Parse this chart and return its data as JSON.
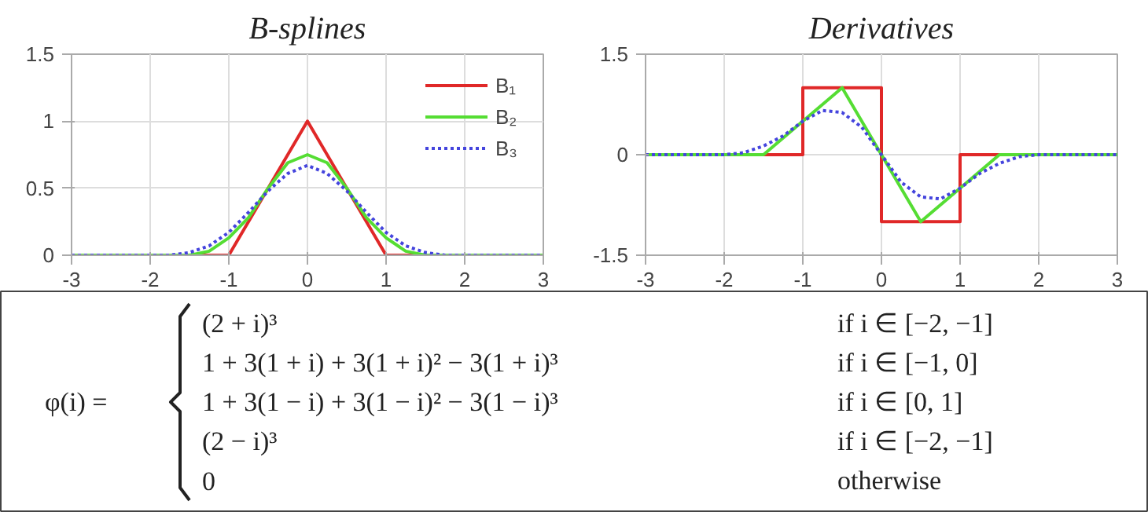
{
  "chart_data": [
    {
      "type": "line",
      "title": "B-splines",
      "xlim": [
        -3,
        3
      ],
      "ylim": [
        0,
        1.5
      ],
      "xticks": [
        -3,
        -2,
        -1,
        0,
        1,
        2,
        3
      ],
      "yticks": [
        0,
        {
          "value": 0.5,
          "label": "0.5"
        },
        1,
        {
          "value": 1.5,
          "label": "1.5"
        }
      ],
      "grid": true,
      "legend": "top right",
      "series": [
        {
          "name": "B₁",
          "color": "#e02828",
          "line_style": "solid",
          "x": [
            -3,
            -1,
            0,
            1,
            3
          ],
          "values": [
            0,
            0,
            1,
            0,
            0
          ]
        },
        {
          "name": "B₂",
          "color": "#55dd33",
          "line_style": "solid",
          "x": [
            -3,
            -1.5,
            -1.25,
            -1,
            -0.75,
            -0.5,
            -0.25,
            0,
            0.25,
            0.5,
            0.75,
            1,
            1.25,
            1.5,
            3
          ],
          "values": [
            0,
            0,
            0.03,
            0.13,
            0.28,
            0.5,
            0.69,
            0.75,
            0.69,
            0.5,
            0.28,
            0.13,
            0.03,
            0,
            0
          ]
        },
        {
          "name": "B₃",
          "color": "#4444dd",
          "line_style": "dotted",
          "x": [
            -3,
            -2,
            -1.75,
            -1.5,
            -1.25,
            -1,
            -0.75,
            -0.5,
            -0.25,
            0,
            0.25,
            0.5,
            0.75,
            1,
            1.25,
            1.5,
            1.75,
            2,
            3
          ],
          "values": [
            0,
            0,
            0,
            0.02,
            0.07,
            0.17,
            0.32,
            0.48,
            0.61,
            0.67,
            0.61,
            0.48,
            0.32,
            0.17,
            0.07,
            0.02,
            0,
            0,
            0
          ]
        }
      ]
    },
    {
      "type": "line",
      "title": "Derivatives",
      "xlim": [
        -3,
        3
      ],
      "ylim": [
        -1.5,
        1.5
      ],
      "xticks": [
        -3,
        -2,
        -1,
        0,
        1,
        2,
        3
      ],
      "yticks": [
        {
          "value": -1.5,
          "label": "-1.5"
        },
        0,
        {
          "value": 1.5,
          "label": "1.5"
        }
      ],
      "grid": true,
      "series": [
        {
          "color": "#e02828",
          "line_style": "solid",
          "x": [
            -3,
            -1,
            -1,
            0,
            0,
            1,
            1,
            3
          ],
          "values": [
            0,
            0,
            1,
            1,
            -1,
            -1,
            0,
            0
          ]
        },
        {
          "color": "#55dd33",
          "line_style": "solid",
          "x": [
            -3,
            -1.5,
            -0.5,
            0.5,
            1.5,
            3
          ],
          "values": [
            0,
            0,
            1,
            -1,
            0,
            0
          ]
        },
        {
          "color": "#4444dd",
          "line_style": "dotted",
          "x": [
            -3,
            -2,
            -1.75,
            -1.5,
            -1.25,
            -1,
            -0.75,
            -0.5,
            -0.25,
            0,
            0.25,
            0.5,
            0.75,
            1,
            1.25,
            1.5,
            1.75,
            2,
            3
          ],
          "values": [
            0,
            0,
            0.03,
            0.13,
            0.28,
            0.5,
            0.66,
            0.63,
            0.41,
            0,
            -0.41,
            -0.63,
            -0.66,
            -0.5,
            -0.28,
            -0.13,
            -0.03,
            0,
            0
          ]
        }
      ]
    },
    {
      "type": "other",
      "annotations": [
        "φ(i) =",
        "(2 + i)³",
        "if i ∈ [−2, −1]",
        "1 + 3(1 + i) + 3(1 + i)² − 3(1 + i)³",
        "if i ∈ [−1, 0]",
        "1 + 3(1 − i) + 3(1 − i)² − 3(1 − i)³",
        "if i ∈ [0, 1]",
        "(2 − i)³",
        "if i ∈ [−2, −1]",
        "0",
        "otherwise"
      ]
    }
  ]
}
